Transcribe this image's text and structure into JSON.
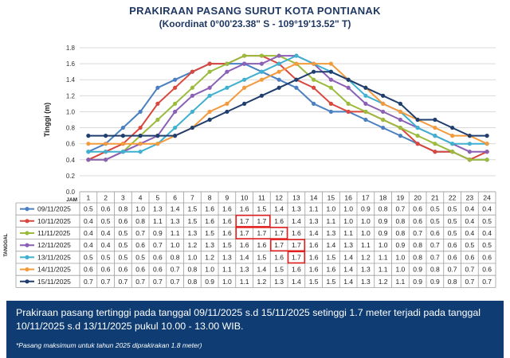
{
  "header": {
    "title": "PRAKIRAAN PASANG SURUT KOTA PONTIANAK",
    "subtitle": "(Koordinat 0°00'23.38\" S - 109°19'13.52\" T)"
  },
  "chart_data": {
    "type": "line",
    "title": "PRAKIRAAN PASANG SURUT KOTA PONTIANAK",
    "subtitle": "(Koordinat 0°00'23.38\" S - 109°19'13.52\" T)",
    "ylabel": "Tinggi (m)",
    "xlabel": "JAM",
    "table_row_label": "TANGGAL",
    "ylim": [
      0.0,
      1.8
    ],
    "yticks": [
      "0.0",
      "0.2",
      "0.4",
      "0.6",
      "0.8",
      "1.0",
      "1.2",
      "1.4",
      "1.6",
      "1.8"
    ],
    "grid": true,
    "legend": "data-table",
    "categories": [
      "1",
      "2",
      "3",
      "4",
      "5",
      "6",
      "7",
      "8",
      "9",
      "10",
      "11",
      "12",
      "13",
      "14",
      "15",
      "16",
      "17",
      "18",
      "19",
      "20",
      "21",
      "22",
      "23",
      "24"
    ],
    "series": [
      {
        "name": "09/11/2025",
        "color": "#4a7fc1",
        "values": [
          0.5,
          0.6,
          0.8,
          1.0,
          1.3,
          1.4,
          1.5,
          1.6,
          1.6,
          1.6,
          1.5,
          1.4,
          1.3,
          1.1,
          1.0,
          1.0,
          0.9,
          0.8,
          0.7,
          0.6,
          0.5,
          0.5,
          0.4,
          0.4
        ]
      },
      {
        "name": "10/11/2025",
        "color": "#d9473d",
        "values": [
          0.4,
          0.5,
          0.6,
          0.8,
          1.1,
          1.3,
          1.5,
          1.6,
          1.6,
          1.7,
          1.7,
          1.6,
          1.4,
          1.3,
          1.1,
          1.0,
          1.0,
          0.9,
          0.8,
          0.6,
          0.5,
          0.5,
          0.4,
          0.5
        ]
      },
      {
        "name": "11/11/2025",
        "color": "#9bbb3c",
        "values": [
          0.4,
          0.4,
          0.5,
          0.7,
          0.9,
          1.1,
          1.3,
          1.5,
          1.6,
          1.7,
          1.7,
          1.7,
          1.6,
          1.4,
          1.3,
          1.1,
          1.0,
          0.9,
          0.8,
          0.7,
          0.6,
          0.5,
          0.4,
          0.4
        ]
      },
      {
        "name": "12/11/2025",
        "color": "#8a5fb5",
        "values": [
          0.4,
          0.4,
          0.5,
          0.6,
          0.7,
          1.0,
          1.2,
          1.3,
          1.5,
          1.6,
          1.6,
          1.7,
          1.7,
          1.6,
          1.4,
          1.3,
          1.1,
          1.0,
          0.9,
          0.8,
          0.7,
          0.6,
          0.5,
          0.5
        ]
      },
      {
        "name": "13/11/2025",
        "color": "#3fb0cf",
        "values": [
          0.5,
          0.5,
          0.5,
          0.5,
          0.6,
          0.8,
          1.0,
          1.2,
          1.3,
          1.4,
          1.5,
          1.6,
          1.7,
          1.6,
          1.5,
          1.4,
          1.2,
          1.1,
          1.0,
          0.8,
          0.7,
          0.6,
          0.6,
          0.6
        ]
      },
      {
        "name": "14/11/2025",
        "color": "#f39a3d",
        "values": [
          0.6,
          0.6,
          0.6,
          0.6,
          0.6,
          0.7,
          0.8,
          1.0,
          1.1,
          1.3,
          1.4,
          1.5,
          1.6,
          1.6,
          1.6,
          1.4,
          1.3,
          1.1,
          1.0,
          0.9,
          0.8,
          0.7,
          0.7,
          0.6
        ]
      },
      {
        "name": "15/11/2025",
        "color": "#1f3e6e",
        "values": [
          0.7,
          0.7,
          0.7,
          0.7,
          0.7,
          0.7,
          0.8,
          0.9,
          1.0,
          1.1,
          1.2,
          1.3,
          1.4,
          1.5,
          1.5,
          1.4,
          1.3,
          1.2,
          1.1,
          0.9,
          0.9,
          0.8,
          0.7,
          0.7
        ]
      }
    ],
    "highlighted_cells": [
      {
        "series": 1,
        "cols": [
          9,
          10
        ]
      },
      {
        "series": 2,
        "cols": [
          9,
          10,
          11
        ]
      },
      {
        "series": 3,
        "cols": [
          11,
          12
        ]
      },
      {
        "series": 4,
        "cols": [
          12
        ]
      }
    ]
  },
  "info": {
    "text": "Prakiraan pasang tertinggi pada tanggal 09/11/2025 s.d 15/11/2025 setinggi 1.7 meter terjadi pada tanggal 10/11/2025 s.d 13/11/2025 pukul 10.00 - 13.00 WIB.",
    "note": "*Pasang maksimum untuk tahun 2025 diprakirakan 1.8 meter)"
  }
}
